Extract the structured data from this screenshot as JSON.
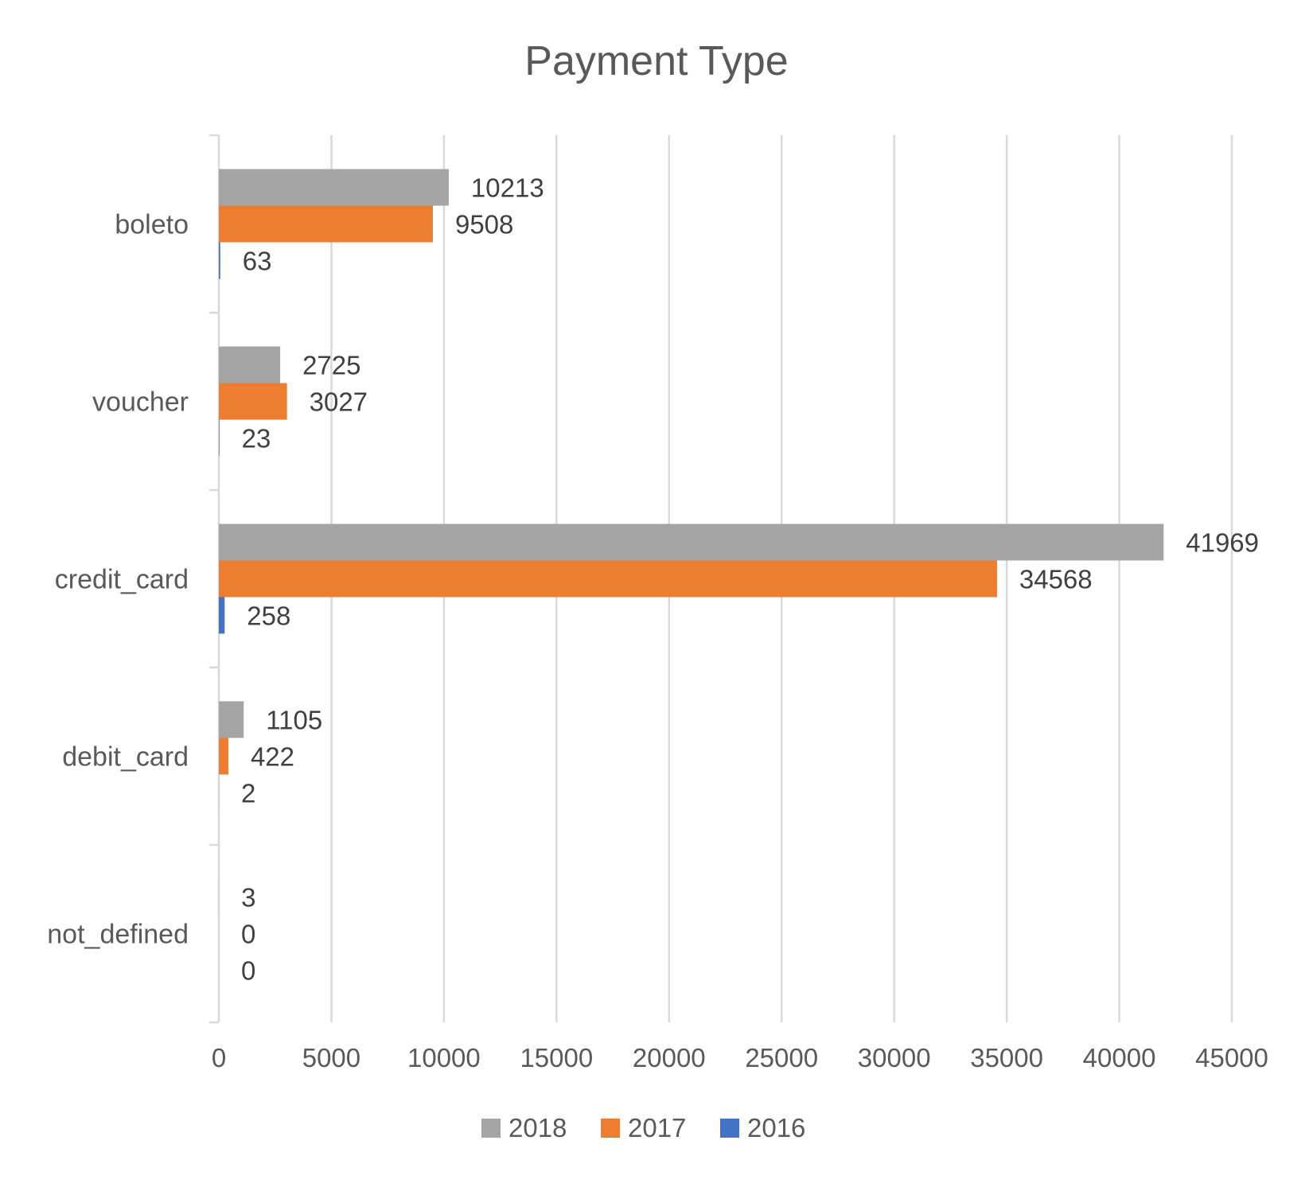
{
  "chart_data": {
    "type": "bar",
    "orientation": "horizontal",
    "title": "Payment Type",
    "xlabel": "",
    "ylabel": "",
    "categories": [
      "boleto",
      "voucher",
      "credit_card",
      "debit_card",
      "not_defined"
    ],
    "series": [
      {
        "name": "2018",
        "color": "#a5a5a5",
        "values": [
          10213,
          2725,
          41969,
          1105,
          3
        ]
      },
      {
        "name": "2017",
        "color": "#ed7d31",
        "values": [
          9508,
          3027,
          34568,
          422,
          0
        ]
      },
      {
        "name": "2016",
        "color": "#4472c4",
        "values": [
          63,
          23,
          258,
          2,
          0
        ]
      }
    ],
    "xlim": [
      0,
      45000
    ],
    "xticks": [
      0,
      5000,
      10000,
      15000,
      20000,
      25000,
      30000,
      35000,
      40000,
      45000
    ],
    "grid": true,
    "legend": "bottom",
    "data_labels": true
  }
}
